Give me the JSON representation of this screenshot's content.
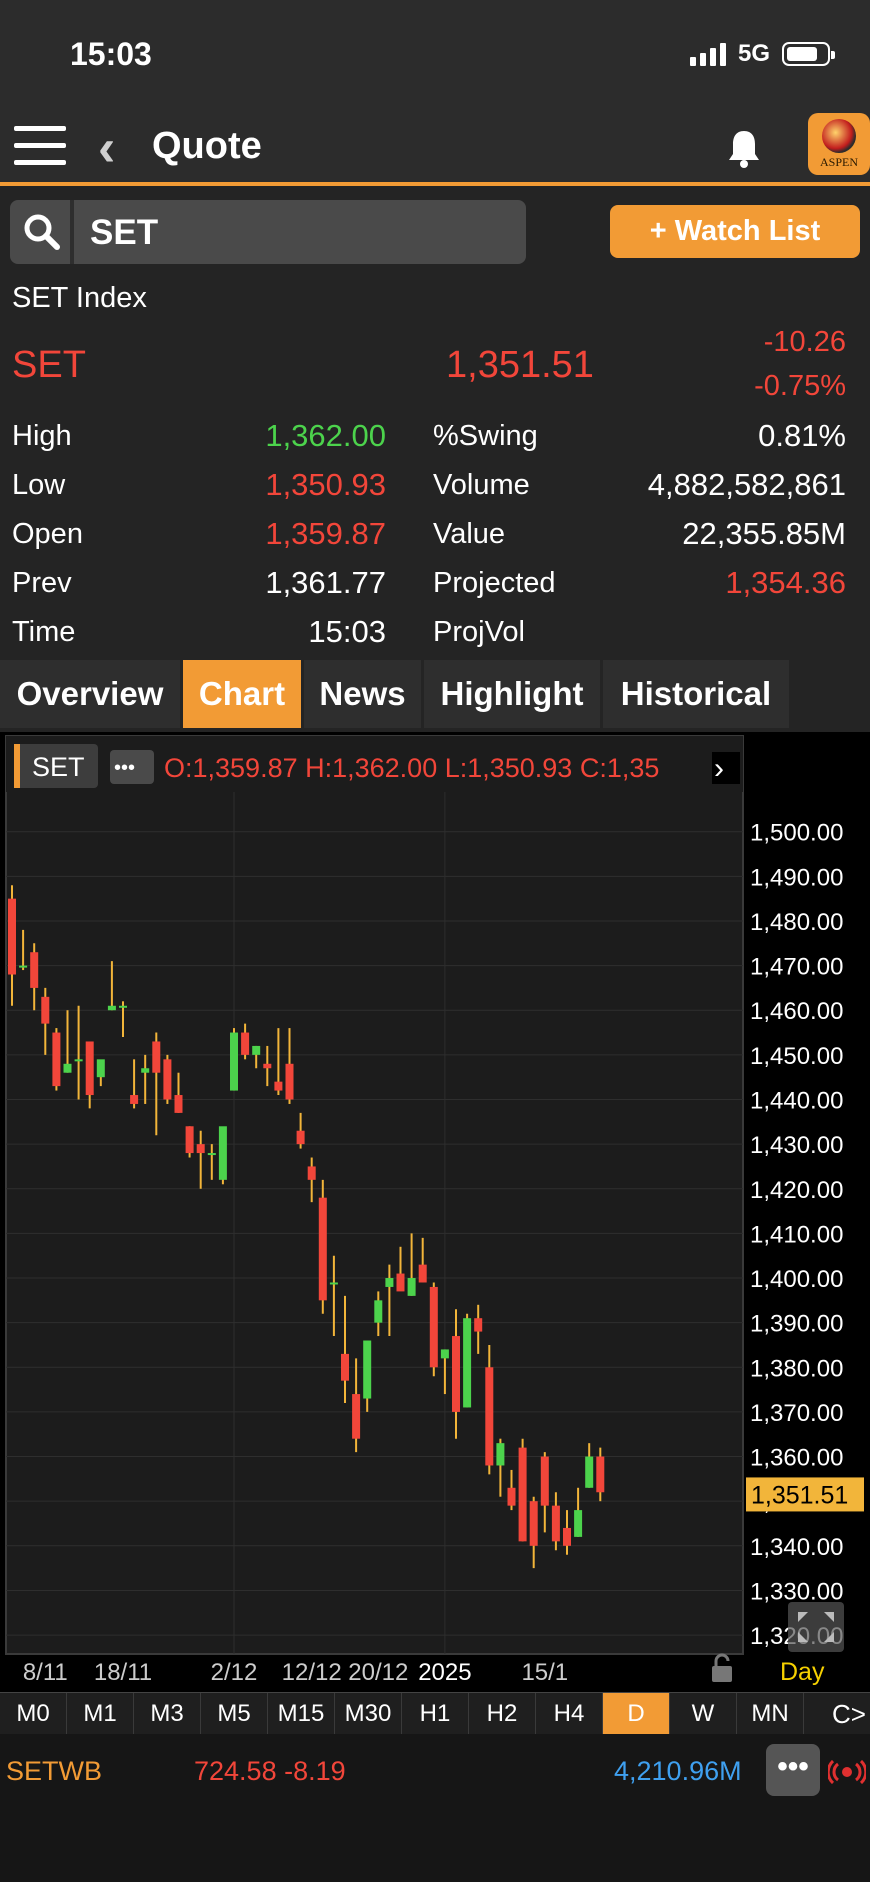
{
  "status_bar": {
    "time": "15:03",
    "network": "5G",
    "battery_level": 0.78
  },
  "nav": {
    "title": "Quote",
    "icons": [
      "hamburger-menu-icon",
      "back-chevron-icon",
      "bell-icon",
      "aspen-logo"
    ],
    "logo_text": "ASPEN"
  },
  "search": {
    "value": "SET"
  },
  "watch_button": {
    "label": "+ Watch List"
  },
  "quote": {
    "index_name": "SET Index",
    "symbol": "SET",
    "price": "1,351.51",
    "change": "-10.26",
    "change_pct": "-0.75%"
  },
  "stats": {
    "high_label": "High",
    "high": "1,362.00",
    "low_label": "Low",
    "low": "1,350.93",
    "open_label": "Open",
    "open": "1,359.87",
    "prev_label": "Prev",
    "prev": "1,361.77",
    "time_label": "Time",
    "time": "15:03",
    "swing_label": "%Swing",
    "swing": "0.81%",
    "volume_label": "Volume",
    "volume": "4,882,582,861",
    "value_label": "Value",
    "value": "22,355.85M",
    "projected_label": "Projected",
    "projected": "1,354.36",
    "projvol_label": "ProjVol"
  },
  "tabs": [
    {
      "label": "Overview",
      "active": false
    },
    {
      "label": "Chart",
      "active": true
    },
    {
      "label": "News",
      "active": false
    },
    {
      "label": "Highlight",
      "active": false
    },
    {
      "label": "Historical",
      "active": false
    }
  ],
  "chart_data": {
    "type": "candlestick",
    "symbol_label": "SET",
    "more_label": "•••",
    "ohlc_label": "O:1,359.87  H:1,362.00  L:1,350.93  C:1,35",
    "ylim": [
      1318,
      1508
    ],
    "y_ticks": [
      1500,
      1490,
      1480,
      1470,
      1460,
      1450,
      1440,
      1430,
      1420,
      1410,
      1400,
      1390,
      1380,
      1370,
      1360,
      1350,
      1340,
      1330,
      1320
    ],
    "y_tick_labels": [
      "1,500.00",
      "1,490.00",
      "1,480.00",
      "1,470.00",
      "1,460.00",
      "1,450.00",
      "1,440.00",
      "1,430.00",
      "1,420.00",
      "1,410.00",
      "1,400.00",
      "1,390.00",
      "1,380.00",
      "1,370.00",
      "1,360.00",
      "1,350.00",
      "1,340.00",
      "1,330.00",
      "1,320.00"
    ],
    "last_price_label": "1,351.51",
    "last_price": 1351.51,
    "x_labels": [
      {
        "text": "8/11",
        "index": 3
      },
      {
        "text": "18/11",
        "index": 10
      },
      {
        "text": "2/12",
        "index": 20
      },
      {
        "text": "12/12",
        "index": 27
      },
      {
        "text": "20/12",
        "index": 33
      },
      {
        "text": "2025",
        "index": 39
      },
      {
        "text": "15/1",
        "index": 48
      }
    ],
    "period_label": "Day",
    "grid": true,
    "candles": [
      [
        1485,
        1488,
        1461,
        1468
      ],
      [
        1470,
        1478,
        1469,
        1470
      ],
      [
        1473,
        1475,
        1460,
        1465
      ],
      [
        1463,
        1465,
        1450,
        1457
      ],
      [
        1455,
        1456,
        1442,
        1443
      ],
      [
        1446,
        1460,
        1446,
        1448
      ],
      [
        1449,
        1461,
        1440,
        1449
      ],
      [
        1453,
        1453,
        1438,
        1441
      ],
      [
        1445,
        1448,
        1443,
        1449
      ],
      [
        1460,
        1471,
        1460,
        1461
      ],
      [
        1461,
        1462,
        1454,
        1461
      ],
      [
        1441,
        1449,
        1438,
        1439
      ],
      [
        1446,
        1450,
        1439,
        1447
      ],
      [
        1453,
        1455,
        1432,
        1446
      ],
      [
        1449,
        1450,
        1439,
        1440
      ],
      [
        1441,
        1446,
        1437,
        1437
      ],
      [
        1434,
        1434,
        1427,
        1428
      ],
      [
        1430,
        1433,
        1420,
        1428
      ],
      [
        1428,
        1430,
        1422,
        1428
      ],
      [
        1422,
        1433,
        1421,
        1434
      ],
      [
        1442,
        1456,
        1442,
        1455
      ],
      [
        1455,
        1457,
        1449,
        1450
      ],
      [
        1450,
        1452,
        1447,
        1452
      ],
      [
        1448,
        1452,
        1443,
        1447
      ],
      [
        1444,
        1456,
        1441,
        1442
      ],
      [
        1448,
        1456,
        1439,
        1440
      ],
      [
        1433,
        1437,
        1429,
        1430
      ],
      [
        1425,
        1427,
        1417,
        1422
      ],
      [
        1418,
        1422,
        1392,
        1395
      ],
      [
        1399,
        1405,
        1387,
        1399
      ],
      [
        1383,
        1396,
        1372,
        1377
      ],
      [
        1374,
        1382,
        1361,
        1364
      ],
      [
        1373,
        1386,
        1370,
        1386
      ],
      [
        1390,
        1397,
        1387,
        1395
      ],
      [
        1398,
        1403,
        1387,
        1400
      ],
      [
        1401,
        1407,
        1398,
        1397
      ],
      [
        1396,
        1410,
        1396,
        1400
      ],
      [
        1403,
        1409,
        1399,
        1399
      ],
      [
        1398,
        1399,
        1378,
        1380
      ],
      [
        1382,
        1384,
        1374,
        1384
      ],
      [
        1387,
        1393,
        1364,
        1370
      ],
      [
        1371,
        1392,
        1371,
        1391
      ],
      [
        1391,
        1394,
        1383,
        1388
      ],
      [
        1380,
        1385,
        1356,
        1358
      ],
      [
        1358,
        1364,
        1351,
        1363
      ],
      [
        1353,
        1357,
        1348,
        1349
      ],
      [
        1362,
        1364,
        1341,
        1341
      ],
      [
        1350,
        1351,
        1335,
        1340
      ],
      [
        1360,
        1361,
        1343,
        1349
      ],
      [
        1349,
        1352,
        1339,
        1341
      ],
      [
        1344,
        1348,
        1338,
        1340
      ],
      [
        1342,
        1353,
        1342,
        1348
      ],
      [
        1353,
        1363,
        1353,
        1360
      ],
      [
        1360,
        1362,
        1350,
        1352
      ]
    ]
  },
  "intervals": [
    {
      "label": "M0",
      "active": false
    },
    {
      "label": "M1",
      "active": false
    },
    {
      "label": "M3",
      "active": false
    },
    {
      "label": "M5",
      "active": false
    },
    {
      "label": "M15",
      "active": false
    },
    {
      "label": "M30",
      "active": false
    },
    {
      "label": "H1",
      "active": false
    },
    {
      "label": "H2",
      "active": false
    },
    {
      "label": "H4",
      "active": false
    },
    {
      "label": "D",
      "active": true
    },
    {
      "label": "W",
      "active": false
    },
    {
      "label": "MN",
      "active": false
    }
  ],
  "intervals_more": "C>",
  "ticker": {
    "symbol": "SETWB",
    "price_change": "724.58 -8.19",
    "value": "4,210.96M",
    "more_label": "•••"
  },
  "colors": {
    "accent": "#f29b35",
    "up": "#4cd34c",
    "down": "#f2463a",
    "wick": "#f2b53a",
    "value_blue": "#3fa0f0"
  }
}
